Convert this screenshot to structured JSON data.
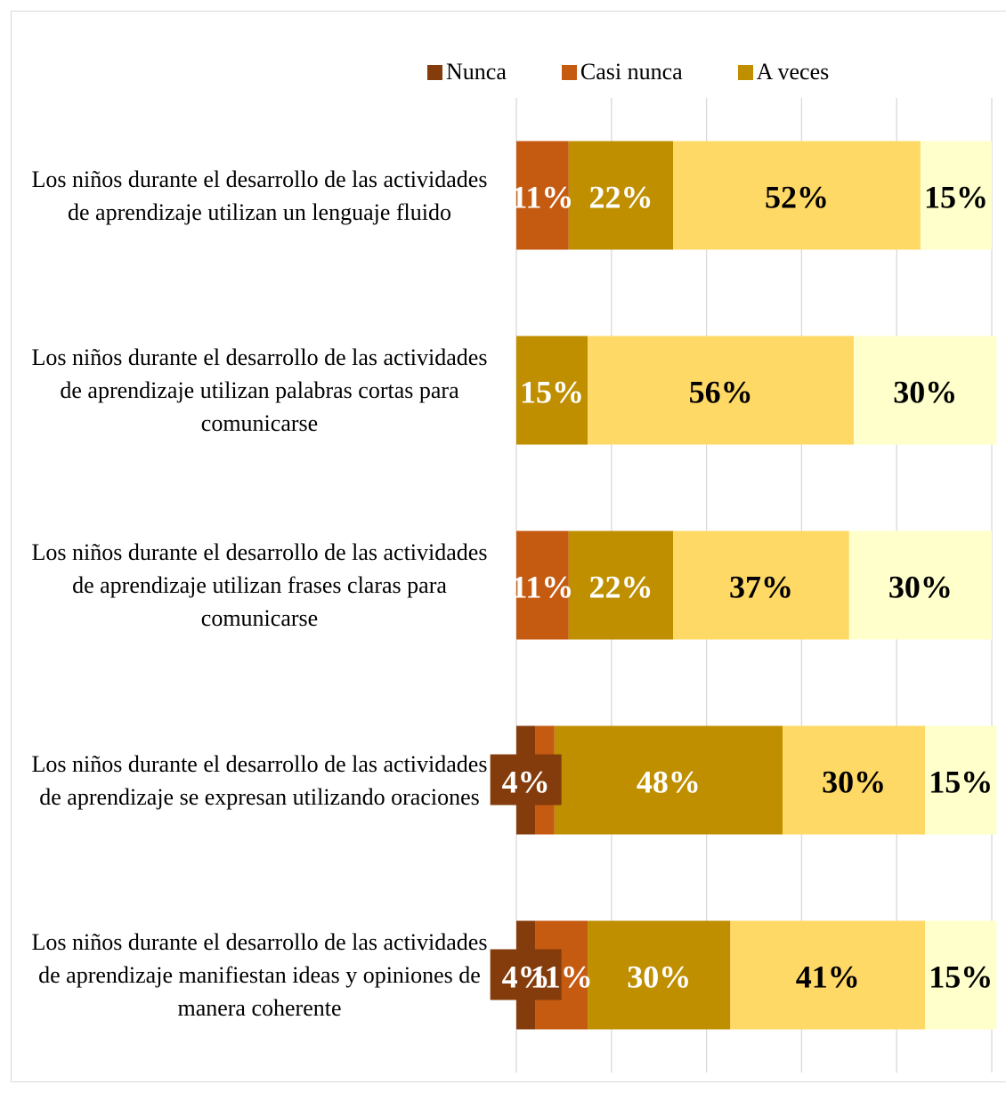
{
  "chart_data": {
    "type": "stacked-bar-horizontal",
    "categories": [
      "Los niños durante el desarrollo de las actividades de aprendizaje utilizan un lenguaje fluido",
      "Los niños durante el desarrollo de las actividades de aprendizaje utilizan palabras cortas para comunicarse",
      "Los niños durante el desarrollo de las actividades de aprendizaje utilizan frases claras para comunicarse",
      "Los niños durante el desarrollo de las actividades de aprendizaje se expresan utilizando oraciones",
      "Los niños durante el desarrollo de las actividades de aprendizaje manifiestan ideas y opiniones de manera coherente"
    ],
    "series": [
      {
        "name": "Nunca",
        "color": "#843C0C",
        "label_color": "#ffffff",
        "values": [
          null,
          null,
          null,
          4,
          4
        ],
        "value_labels": [
          null,
          null,
          null,
          "4%",
          "4%"
        ]
      },
      {
        "name": "Casi nunca",
        "color": "#C55A11",
        "label_color": "#ffffff",
        "values": [
          11,
          null,
          11,
          4,
          11
        ],
        "value_labels": [
          "11%",
          null,
          "11%",
          null,
          "11%"
        ]
      },
      {
        "name": "A veces",
        "color": "#BF8F00",
        "label_color": "#ffffff",
        "values": [
          22,
          15,
          22,
          48,
          30
        ],
        "value_labels": [
          "22%",
          "15%",
          "22%",
          "48%",
          "30%"
        ]
      },
      {
        "color": "#FFD966",
        "label_color": "#000000",
        "values": [
          52,
          56,
          37,
          30,
          41
        ],
        "value_labels": [
          "52%",
          "56%",
          "37%",
          "30%",
          "41%"
        ]
      },
      {
        "color": "#FFFFCC",
        "label_color": "#000000",
        "values": [
          15,
          30,
          30,
          15,
          15
        ],
        "value_labels": [
          "15%",
          "30%",
          "30%",
          "15%",
          "15%"
        ]
      }
    ],
    "xlim": [
      0,
      100
    ],
    "xticks": [
      0,
      20,
      40,
      60,
      80,
      100
    ],
    "grid": true,
    "legend": "top"
  }
}
